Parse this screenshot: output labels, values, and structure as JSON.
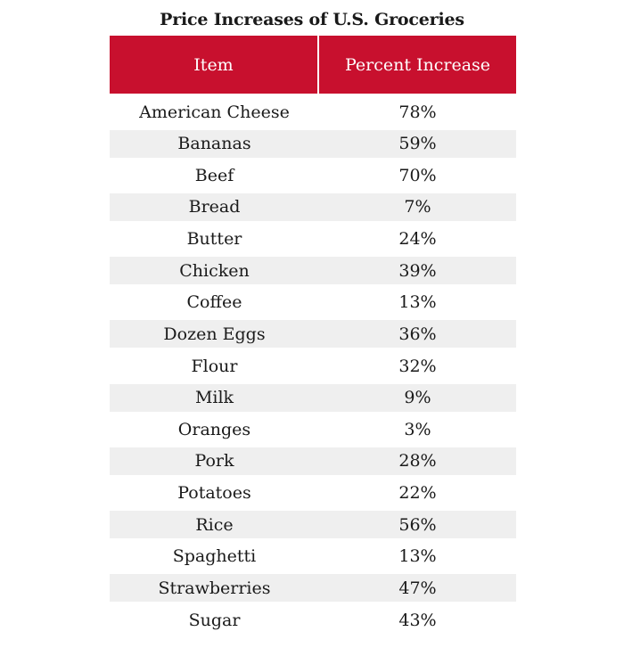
{
  "chart_data": {
    "type": "table",
    "title": "Price Increases of U.S. Groceries",
    "columns": [
      "Item",
      "Percent Increase"
    ],
    "rows": [
      {
        "item": "American Cheese",
        "percent": "78%"
      },
      {
        "item": "Bananas",
        "percent": "59%"
      },
      {
        "item": "Beef",
        "percent": "70%"
      },
      {
        "item": "Bread",
        "percent": "7%"
      },
      {
        "item": "Butter",
        "percent": "24%"
      },
      {
        "item": "Chicken",
        "percent": "39%"
      },
      {
        "item": "Coffee",
        "percent": "13%"
      },
      {
        "item": "Dozen Eggs",
        "percent": "36%"
      },
      {
        "item": "Flour",
        "percent": "32%"
      },
      {
        "item": "Milk",
        "percent": "9%"
      },
      {
        "item": "Oranges",
        "percent": "3%"
      },
      {
        "item": "Pork",
        "percent": "28%"
      },
      {
        "item": "Potatoes",
        "percent": "22%"
      },
      {
        "item": "Rice",
        "percent": "56%"
      },
      {
        "item": "Spaghetti",
        "percent": "13%"
      },
      {
        "item": "Strawberries",
        "percent": "47%"
      },
      {
        "item": "Sugar",
        "percent": "43%"
      }
    ],
    "colors": {
      "header_bg": "#c8102e",
      "header_text": "#ffffff",
      "row_shade": "#efefef",
      "text": "#1a1a1a"
    }
  }
}
